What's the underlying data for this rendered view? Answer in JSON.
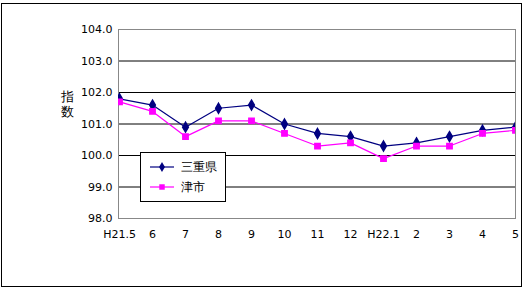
{
  "chart_data": {
    "type": "line",
    "y_label": "指数",
    "categories": [
      "H21.5",
      "6",
      "7",
      "8",
      "9",
      "10",
      "11",
      "12",
      "H22.1",
      "2",
      "3",
      "4",
      "5"
    ],
    "series": [
      {
        "name": "三重県",
        "color": "#000080",
        "marker": "diamond",
        "values": [
          101.8,
          101.6,
          100.9,
          101.5,
          101.6,
          101.0,
          100.7,
          100.6,
          100.3,
          100.4,
          100.6,
          100.8,
          100.9
        ]
      },
      {
        "name": "津市",
        "color": "#ff00ff",
        "marker": "square",
        "values": [
          101.7,
          101.4,
          100.6,
          101.1,
          101.1,
          100.7,
          100.3,
          100.4,
          99.9,
          100.3,
          100.3,
          100.7,
          100.8
        ]
      }
    ],
    "ylim": [
      98,
      104
    ],
    "yticks": [
      {
        "value": 98,
        "label": "98.0"
      },
      {
        "value": 99,
        "label": "99.0"
      },
      {
        "value": 100,
        "label": "100.0"
      },
      {
        "value": 101,
        "label": "101.0"
      },
      {
        "value": 102,
        "label": "102.0"
      },
      {
        "value": 103,
        "label": "103.0"
      },
      {
        "value": 104,
        "label": "104.0"
      }
    ],
    "grid": true,
    "legend": "left"
  }
}
